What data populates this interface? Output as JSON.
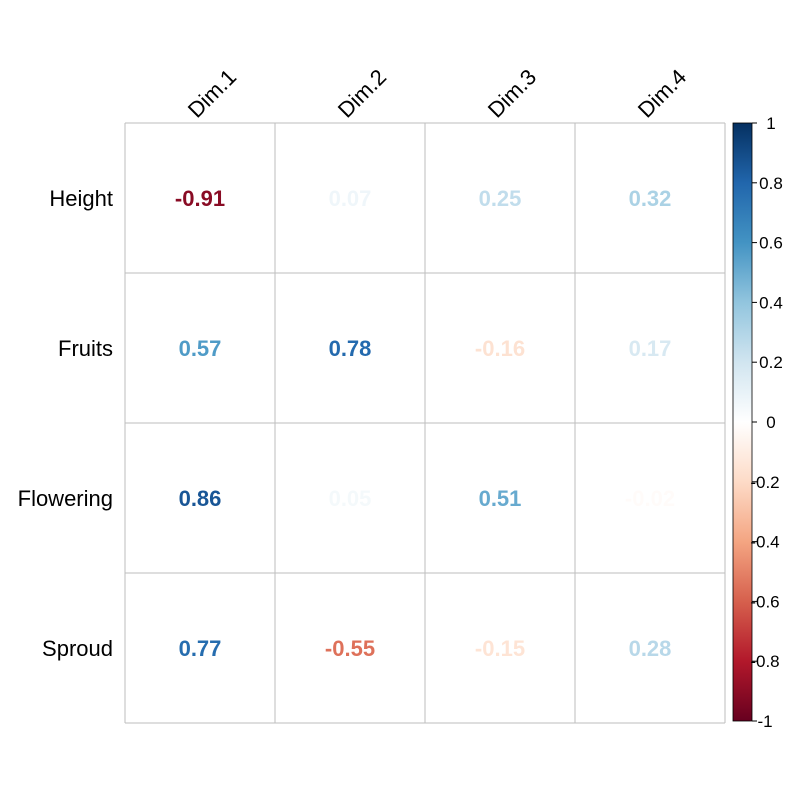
{
  "chart_data": {
    "type": "heatmap",
    "rows": [
      "Height",
      "Fruits",
      "Flowering",
      "Sproud"
    ],
    "columns": [
      "Dim.1",
      "Dim.2",
      "Dim.3",
      "Dim.4"
    ],
    "values": [
      [
        -0.91,
        0.07,
        0.25,
        0.32
      ],
      [
        0.57,
        0.78,
        -0.16,
        0.17
      ],
      [
        0.86,
        0.05,
        0.51,
        -0.02
      ],
      [
        0.77,
        -0.55,
        -0.15,
        0.28
      ]
    ],
    "value_labels": [
      [
        "-0.91",
        "0.07",
        "0.25",
        "0.32"
      ],
      [
        "0.57",
        "0.78",
        "-0.16",
        "0.17"
      ],
      [
        "0.86",
        "0.05",
        "0.51",
        "-0.02"
      ],
      [
        "0.77",
        "-0.55",
        "-0.15",
        "0.28"
      ]
    ],
    "colorbar": {
      "range": [
        -1,
        1
      ],
      "ticks": [
        1,
        0.8,
        0.6,
        0.4,
        0.2,
        0,
        -0.2,
        -0.4,
        -0.6,
        -0.8,
        -1
      ],
      "tick_labels": [
        "1",
        "0.8",
        "0.6",
        "0.4",
        "0.2",
        "0",
        "-0.2",
        "-0.4",
        "-0.6",
        "-0.8",
        "-1"
      ],
      "palette": [
        "#67001F",
        "#B2182B",
        "#D6604D",
        "#F4A582",
        "#FDDBC7",
        "#FFFFFF",
        "#D1E5F0",
        "#92C5DE",
        "#4393C3",
        "#2166AC",
        "#053061"
      ]
    },
    "grid": true,
    "grid_color": "#BEBEBE",
    "legend": "right",
    "title": "",
    "xlabel": "",
    "ylabel": ""
  }
}
